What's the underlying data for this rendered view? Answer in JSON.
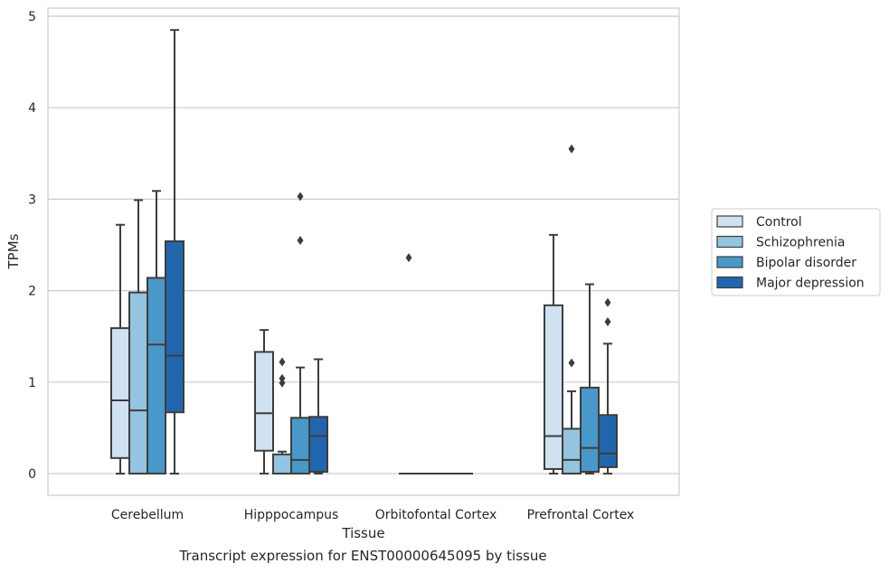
{
  "caption": "Transcript expression for ENST00000645095 by tissue",
  "chart_data": {
    "type": "box",
    "xlabel": "Tissue",
    "ylabel": "TPMs",
    "ylim": [
      -0.23,
      5.1
    ],
    "yticks": [
      0,
      1,
      2,
      3,
      4,
      5
    ],
    "grid": true,
    "legend_position": "right",
    "categories": [
      "Cerebellum",
      "Hipppocampus",
      "Orbitofontal Cortex",
      "Prefrontal Cortex"
    ],
    "series": [
      {
        "name": "Control",
        "color": "#d0e1f2",
        "boxes": [
          {
            "whislo": 0.0,
            "q1": 0.17,
            "med": 0.8,
            "q3": 1.59,
            "whishi": 2.72,
            "fliers": []
          },
          {
            "whislo": 0.0,
            "q1": 0.25,
            "med": 0.66,
            "q3": 1.33,
            "whishi": 1.57,
            "fliers": []
          },
          {
            "whislo": 0.0,
            "q1": 0.0,
            "med": 0.0,
            "q3": 0.0,
            "whishi": 0.0,
            "fliers": [
              2.36
            ]
          },
          {
            "whislo": 0.0,
            "q1": 0.05,
            "med": 0.41,
            "q3": 1.84,
            "whishi": 2.61,
            "fliers": []
          }
        ]
      },
      {
        "name": "Schizophrenia",
        "color": "#94c4df",
        "boxes": [
          {
            "whislo": 0.0,
            "q1": 0.0,
            "med": 0.69,
            "q3": 1.98,
            "whishi": 2.99,
            "fliers": []
          },
          {
            "whislo": 0.0,
            "q1": 0.0,
            "med": 0.0,
            "q3": 0.21,
            "whishi": 0.24,
            "fliers": [
              0.99,
              1.04,
              1.22
            ]
          },
          {
            "whislo": 0.0,
            "q1": 0.0,
            "med": 0.0,
            "q3": 0.0,
            "whishi": 0.0,
            "fliers": []
          },
          {
            "whislo": 0.0,
            "q1": 0.0,
            "med": 0.15,
            "q3": 0.49,
            "whishi": 0.9,
            "fliers": [
              1.21,
              3.55
            ]
          }
        ]
      },
      {
        "name": "Bipolar disorder",
        "color": "#4a98c9",
        "boxes": [
          {
            "whislo": 0.0,
            "q1": 0.0,
            "med": 1.41,
            "q3": 2.14,
            "whishi": 3.09,
            "fliers": []
          },
          {
            "whislo": 0.0,
            "q1": 0.0,
            "med": 0.15,
            "q3": 0.61,
            "whishi": 1.16,
            "fliers": [
              2.55,
              3.03
            ]
          },
          {
            "whislo": 0.0,
            "q1": 0.0,
            "med": 0.0,
            "q3": 0.0,
            "whishi": 0.0,
            "fliers": []
          },
          {
            "whislo": 0.0,
            "q1": 0.02,
            "med": 0.28,
            "q3": 0.94,
            "whishi": 2.07,
            "fliers": []
          }
        ]
      },
      {
        "name": "Major depression",
        "color": "#2166ac",
        "boxes": [
          {
            "whislo": 0.0,
            "q1": 0.67,
            "med": 1.29,
            "q3": 2.54,
            "whishi": 4.85,
            "fliers": []
          },
          {
            "whislo": 0.0,
            "q1": 0.02,
            "med": 0.41,
            "q3": 0.62,
            "whishi": 1.25,
            "fliers": []
          },
          {
            "whislo": 0.0,
            "q1": 0.0,
            "med": 0.0,
            "q3": 0.0,
            "whishi": 0.0,
            "fliers": []
          },
          {
            "whislo": 0.0,
            "q1": 0.07,
            "med": 0.22,
            "q3": 0.64,
            "whishi": 1.42,
            "fliers": [
              1.66,
              1.87
            ]
          }
        ]
      }
    ]
  }
}
